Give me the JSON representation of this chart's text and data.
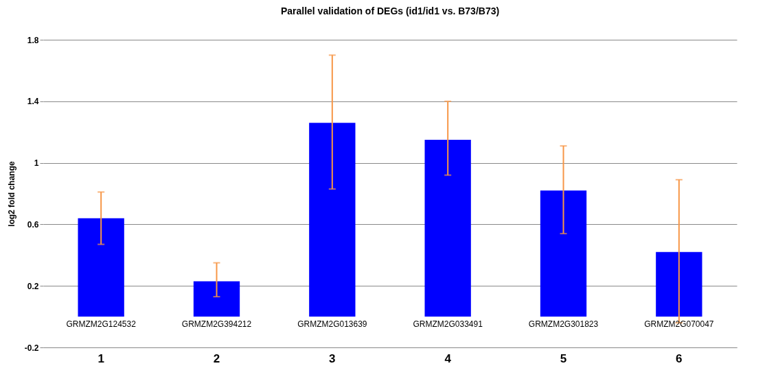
{
  "chart_data": {
    "type": "bar",
    "title": "Parallel validation of DEGs  (id1/id1 vs. B73/B73)",
    "ylabel": "log2 fold change",
    "categories": [
      "1",
      "2",
      "3",
      "4",
      "5",
      "6"
    ],
    "series": [
      {
        "color": "#0000ff",
        "values": [
          0.64,
          0.23,
          1.26,
          1.15,
          0.82,
          0.42
        ],
        "errors": [
          [
            0.47,
            0.81
          ],
          [
            0.13,
            0.35
          ],
          [
            0.83,
            1.7
          ],
          [
            0.92,
            1.4
          ],
          [
            0.54,
            1.11
          ],
          [
            -0.04,
            0.89
          ]
        ]
      }
    ],
    "annotations": [
      "GRMZM2G124532",
      "GRMZM2G394212",
      "GRMZM2G013639",
      "GRMZM2G033491",
      "GRMZM2G301823",
      "GRMZM2G070047"
    ],
    "ylim": [
      -0.2,
      1.8
    ],
    "yticks": [
      -0.2,
      0.2,
      0.6,
      {
        "value": 1,
        "label": "1"
      },
      1.4,
      1.8
    ],
    "grid": "y"
  }
}
